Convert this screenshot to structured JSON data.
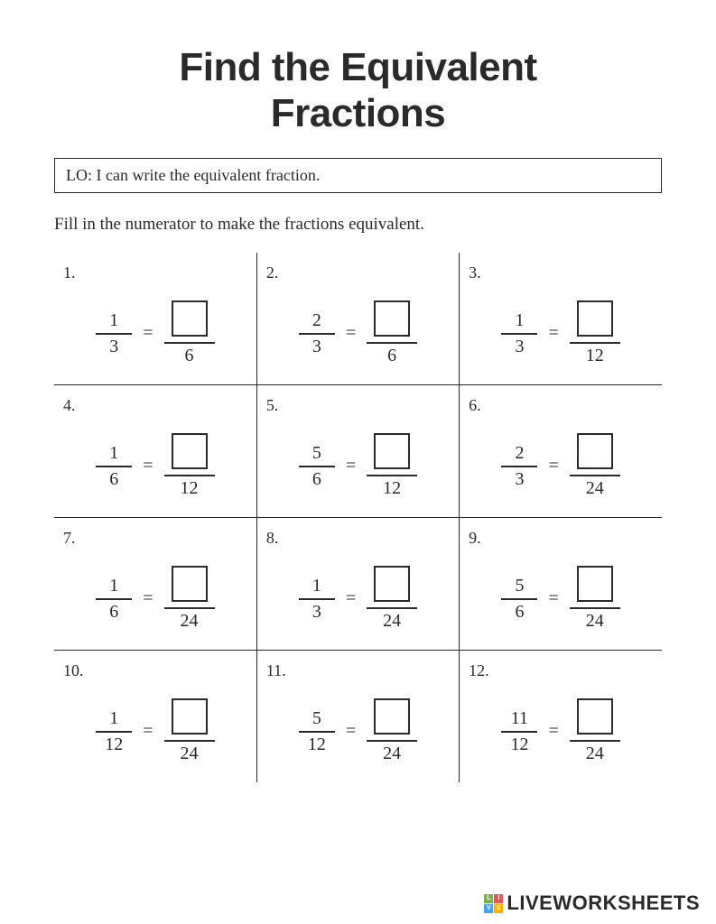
{
  "title_line1": "Find the Equivalent",
  "title_line2": "Fractions",
  "lo_text": "LO: I can write the equivalent fraction.",
  "instruction": "Fill in the numerator to make the fractions equivalent.",
  "problems": [
    {
      "n": "1.",
      "num1": "1",
      "den1": "3",
      "den2": "6"
    },
    {
      "n": "2.",
      "num1": "2",
      "den1": "3",
      "den2": "6"
    },
    {
      "n": "3.",
      "num1": "1",
      "den1": "3",
      "den2": "12"
    },
    {
      "n": "4.",
      "num1": "1",
      "den1": "6",
      "den2": "12"
    },
    {
      "n": "5.",
      "num1": "5",
      "den1": "6",
      "den2": "12"
    },
    {
      "n": "6.",
      "num1": "2",
      "den1": "3",
      "den2": "24"
    },
    {
      "n": "7.",
      "num1": "1",
      "den1": "6",
      "den2": "24"
    },
    {
      "n": "8.",
      "num1": "1",
      "den1": "3",
      "den2": "24"
    },
    {
      "n": "9.",
      "num1": "5",
      "den1": "6",
      "den2": "24"
    },
    {
      "n": "10.",
      "num1": "1",
      "den1": "12",
      "den2": "24"
    },
    {
      "n": "11.",
      "num1": "5",
      "den1": "12",
      "den2": "24"
    },
    {
      "n": "12.",
      "num1": "11",
      "den1": "12",
      "den2": "24"
    }
  ],
  "equals_sign": "=",
  "watermark": {
    "badge_letters": [
      "L",
      "I",
      "V",
      "E"
    ],
    "badge_colors": [
      "#7cb342",
      "#ef5350",
      "#42a5f5",
      "#ffb300"
    ],
    "text": "LIVEWORKSHEETS"
  },
  "colors": {
    "text": "#2a2a2a",
    "background": "#ffffff",
    "border": "#2a2a2a"
  }
}
